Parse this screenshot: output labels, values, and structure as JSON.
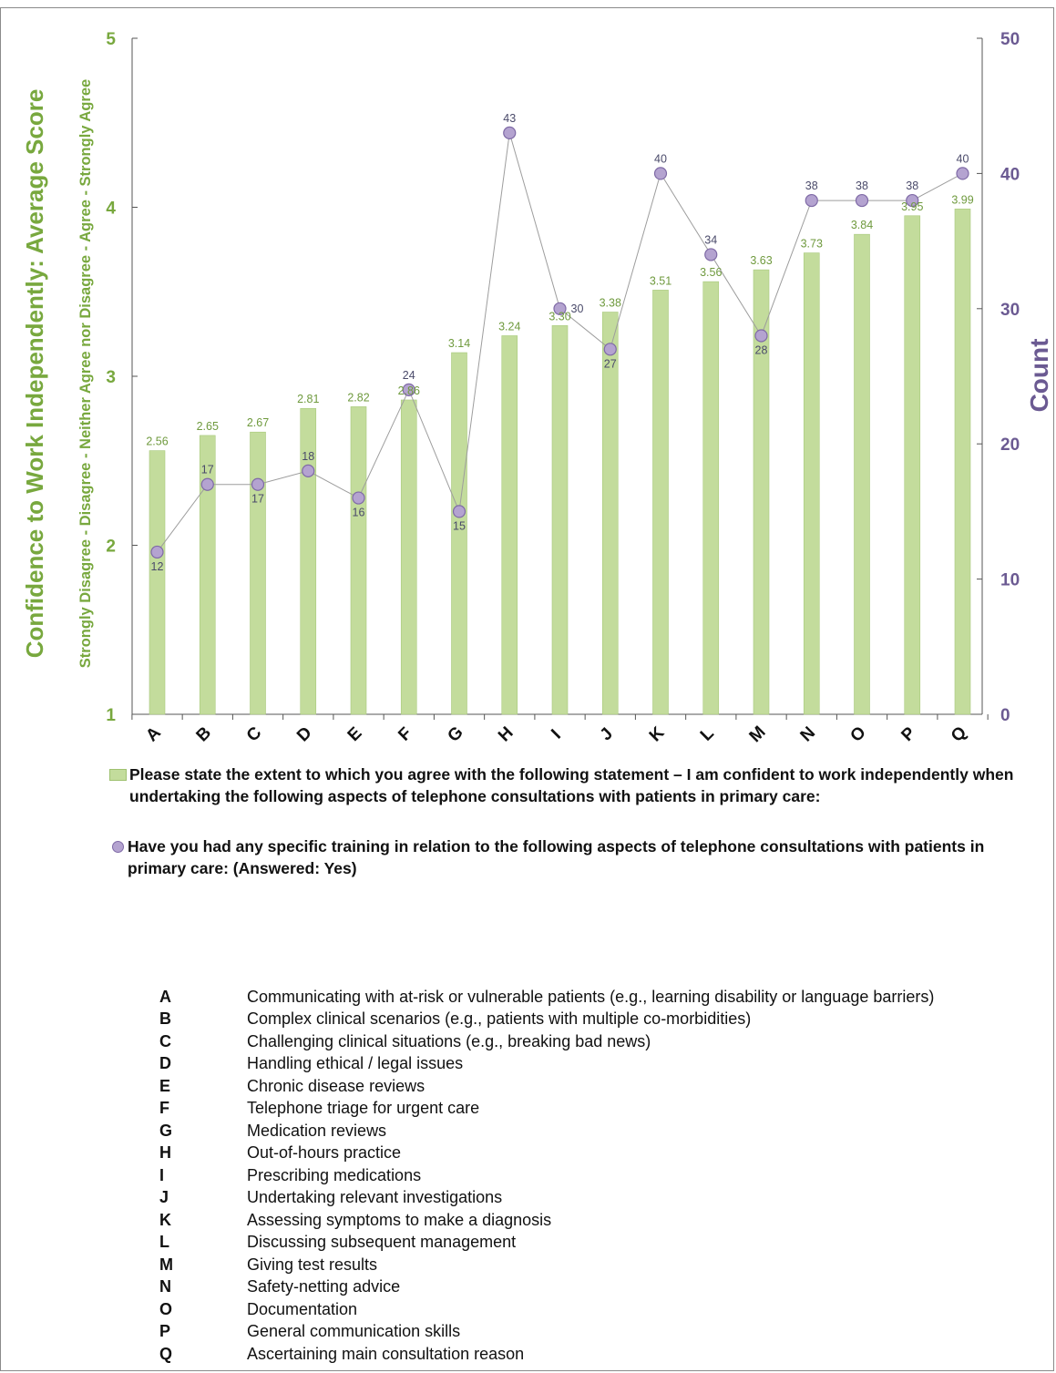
{
  "chart_data": {
    "type": "bar+line",
    "categories": [
      "A",
      "B",
      "C",
      "D",
      "E",
      "F",
      "G",
      "H",
      "I",
      "J",
      "K",
      "L",
      "M",
      "N",
      "O",
      "P",
      "Q"
    ],
    "series": [
      {
        "values": [
          2.56,
          2.65,
          2.67,
          2.81,
          2.82,
          2.86,
          3.14,
          3.24,
          3.3,
          3.38,
          3.51,
          3.56,
          3.63,
          3.73,
          3.84,
          3.95,
          3.99
        ],
        "labels": [
          "2.56",
          "2.65",
          "2.67",
          "2.81",
          "2.82",
          "2.86",
          "3.14",
          "3.24",
          "3.30",
          "3.38",
          "3.51",
          "3.56",
          "3.63",
          "3.73",
          "3.84",
          "3.95",
          "3.99"
        ],
        "axis": "left",
        "type": "bar",
        "color": "#c3dc9c"
      },
      {
        "values": [
          12,
          17,
          17,
          18,
          16,
          24,
          15,
          43,
          30,
          27,
          40,
          34,
          28,
          38,
          38,
          38,
          40
        ],
        "labels": [
          "12",
          "17",
          "17",
          "18",
          "16",
          "24",
          "15",
          "43",
          "30",
          "27",
          "40",
          "34",
          "28",
          "38",
          "38",
          "38",
          "40"
        ],
        "axis": "right",
        "type": "line",
        "color": "#b4a3d0"
      }
    ],
    "ylabel": "Confidence to Work Independently: Average Score",
    "ylabel_sub": "Strongly Disagree - Disagree - Neither Agree nor Disagree - Agree - Strongly Agree",
    "y2label": "Count",
    "ylim": [
      1,
      5
    ],
    "y2lim": [
      0,
      50
    ],
    "yticks": [
      "1",
      "2",
      "3",
      "4",
      "5"
    ],
    "y2ticks": [
      "0",
      "10",
      "20",
      "30",
      "40",
      "50"
    ],
    "grid": false
  },
  "legend": {
    "bar_line1": "Please state the extent to which you agree with the following statement – I am confident to work independently when",
    "bar_line2": "undertaking the following aspects of telephone consultations with patients in primary care:",
    "dot_line1": "Have you had any specific training in relation to the following aspects of telephone consultations with patients in",
    "dot_line2": "primary care: (Answered: Yes)"
  },
  "key": [
    {
      "letter": "A",
      "desc": "Communicating with at-risk or vulnerable patients (e.g., learning disability or language barriers)"
    },
    {
      "letter": "B",
      "desc": "Complex clinical scenarios (e.g., patients with multiple co-morbidities)"
    },
    {
      "letter": "C",
      "desc": "Challenging clinical situations (e.g., breaking bad news)"
    },
    {
      "letter": "D",
      "desc": "Handling ethical / legal issues"
    },
    {
      "letter": "E",
      "desc": "Chronic disease reviews"
    },
    {
      "letter": "F",
      "desc": "Telephone triage for urgent care"
    },
    {
      "letter": "G",
      "desc": "Medication reviews"
    },
    {
      "letter": "H",
      "desc": "Out-of-hours practice"
    },
    {
      "letter": "I",
      "desc": "Prescribing medications"
    },
    {
      "letter": "J",
      "desc": "Undertaking relevant investigations"
    },
    {
      "letter": "K",
      "desc": "Assessing symptoms to make a diagnosis"
    },
    {
      "letter": "L",
      "desc": "Discussing subsequent management"
    },
    {
      "letter": "M",
      "desc": "Giving test results"
    },
    {
      "letter": "N",
      "desc": "Safety-netting advice"
    },
    {
      "letter": "O",
      "desc": "Documentation"
    },
    {
      "letter": "P",
      "desc": "General communication skills"
    },
    {
      "letter": "Q",
      "desc": "Ascertaining main consultation reason"
    }
  ],
  "colors": {
    "bar_fill": "#c3dc9c",
    "bar_label": "#6f9a3e",
    "left_axis": "#78a83e",
    "right_axis": "#6b5a92",
    "dot_fill": "#b4a3d0",
    "dot_label": "#4a4a6a"
  }
}
